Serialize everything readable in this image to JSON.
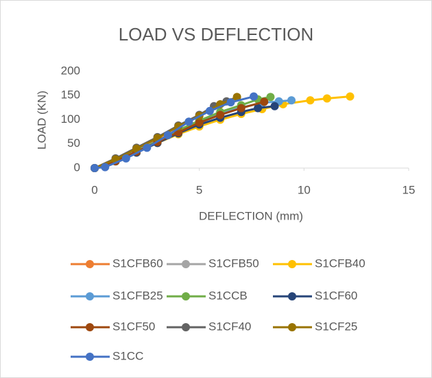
{
  "chart_data": {
    "type": "line",
    "title": "LOAD VS DEFLECTION",
    "x_label": "DEFLECTION (mm)",
    "y_label": "LOAD (KN)",
    "xlim": [
      0,
      15
    ],
    "xticks": [
      0,
      5,
      10,
      15
    ],
    "ylim": [
      0,
      200
    ],
    "yticks": [
      0,
      50,
      100,
      150,
      200
    ],
    "grid": false,
    "legend": "bottom",
    "series": [
      {
        "name": "S1CFB60",
        "color": "#ed7d31",
        "x": [
          0,
          1,
          2,
          3,
          4,
          5
        ],
        "values": [
          0,
          18,
          38,
          58,
          78,
          98
        ]
      },
      {
        "name": "S1CFB50",
        "color": "#a5a5a5",
        "x": [
          0,
          1,
          2,
          3,
          4,
          5,
          6
        ],
        "values": [
          0,
          16,
          36,
          56,
          76,
          96,
          114
        ]
      },
      {
        "name": "S1CFB40",
        "color": "#ffc000",
        "x": [
          0,
          1,
          2,
          3,
          4,
          5,
          6,
          7,
          8,
          9,
          10.3,
          11.1,
          12.2
        ],
        "values": [
          0,
          14,
          32,
          52,
          70,
          86,
          100,
          112,
          122,
          132,
          140,
          144,
          148
        ]
      },
      {
        "name": "S1CFB25",
        "color": "#5b9bd5",
        "x": [
          0,
          1,
          2,
          3,
          4,
          5,
          6,
          7,
          8,
          8.8,
          9.4
        ],
        "values": [
          0,
          16,
          36,
          56,
          76,
          96,
          112,
          125,
          135,
          138,
          140
        ]
      },
      {
        "name": "S1CCB",
        "color": "#70ad47",
        "x": [
          0,
          1,
          2,
          3,
          4,
          5,
          6,
          7,
          7.8,
          8.4
        ],
        "values": [
          0,
          14,
          34,
          56,
          78,
          98,
          116,
          130,
          142,
          147
        ]
      },
      {
        "name": "S1CF60",
        "color": "#264478",
        "x": [
          0,
          1,
          2,
          3,
          4,
          5,
          6,
          7,
          7.8,
          8.6
        ],
        "values": [
          0,
          14,
          32,
          52,
          72,
          90,
          104,
          116,
          124,
          128
        ]
      },
      {
        "name": "S1CF50",
        "color": "#9e480e",
        "x": [
          0,
          1,
          2,
          3,
          4,
          5,
          6,
          7,
          8.1
        ],
        "values": [
          0,
          14,
          34,
          54,
          74,
          94,
          110,
          124,
          137
        ]
      },
      {
        "name": "S1CF40",
        "color": "#636363",
        "x": [
          0,
          1,
          2,
          3,
          4,
          5,
          5.7,
          6.3
        ],
        "values": [
          0,
          20,
          42,
          64,
          88,
          110,
          128,
          138
        ]
      },
      {
        "name": "S1CF25",
        "color": "#997300",
        "x": [
          0,
          1,
          2,
          3,
          4,
          5,
          6,
          6.8
        ],
        "values": [
          0,
          18,
          40,
          62,
          86,
          108,
          132,
          147
        ]
      },
      {
        "name": "S1CC",
        "color": "#4472c4",
        "x": [
          0,
          0.5,
          1.5,
          2.5,
          3.5,
          4.5,
          5.5,
          6.5,
          7.6
        ],
        "values": [
          0,
          2,
          20,
          42,
          68,
          96,
          118,
          136,
          148
        ]
      }
    ]
  }
}
